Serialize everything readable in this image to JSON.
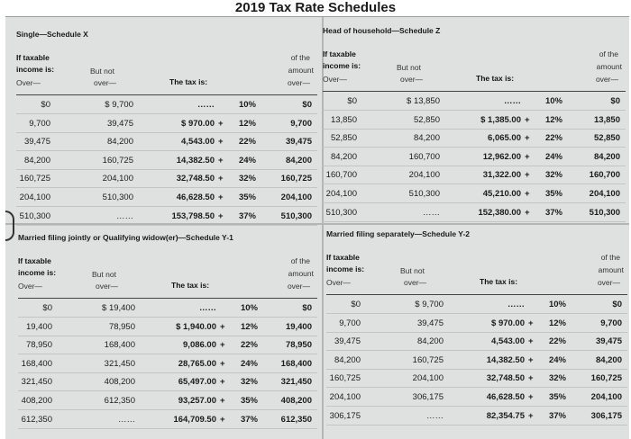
{
  "page_title": "2019 Tax Rate Schedules",
  "schedules": [
    {
      "title": "Single—Schedule X",
      "headers": {
        "if_taxable": "If taxable",
        "income_is": "income is:",
        "over_left": "Over—",
        "but_not": "But not",
        "over_mid": "over—",
        "tax_is": "The tax is:",
        "of_the": "of the",
        "amount": "amount",
        "over_right": "over—"
      },
      "rows": [
        {
          "over": "$0",
          "but_not": "$ 9,700",
          "base": "……",
          "rate": "10%",
          "amount_over": "$0"
        },
        {
          "over": "9,700",
          "but_not": "39,475",
          "base": "$ 970.00",
          "rate": "12%",
          "amount_over": "9,700"
        },
        {
          "over": "39,475",
          "but_not": "84,200",
          "base": "4,543.00",
          "rate": "22%",
          "amount_over": "39,475"
        },
        {
          "over": "84,200",
          "but_not": "160,725",
          "base": "14,382.50",
          "rate": "24%",
          "amount_over": "84,200"
        },
        {
          "over": "160,725",
          "but_not": "204,100",
          "base": "32,748.50",
          "rate": "32%",
          "amount_over": "160,725"
        },
        {
          "over": "204,100",
          "but_not": "510,300",
          "base": "46,628.50",
          "rate": "35%",
          "amount_over": "204,100"
        },
        {
          "over": "510,300",
          "but_not": "……",
          "base": "153,798.50",
          "rate": "37%",
          "amount_over": "510,300"
        }
      ]
    },
    {
      "title": "Head of household—Schedule Z",
      "headers": {
        "if_taxable": "If taxable",
        "income_is": "income is:",
        "over_left": "Over—",
        "but_not": "But not",
        "over_mid": "over—",
        "tax_is": "The tax is:",
        "of_the": "of the",
        "amount": "amount",
        "over_right": "over—"
      },
      "rows": [
        {
          "over": "$0",
          "but_not": "$ 13,850",
          "base": "……",
          "rate": "10%",
          "amount_over": "$0"
        },
        {
          "over": "13,850",
          "but_not": "52,850",
          "base": "$ 1,385.00",
          "rate": "12%",
          "amount_over": "13,850"
        },
        {
          "over": "52,850",
          "but_not": "84,200",
          "base": "6,065.00",
          "rate": "22%",
          "amount_over": "52,850"
        },
        {
          "over": "84,200",
          "but_not": "160,700",
          "base": "12,962.00",
          "rate": "24%",
          "amount_over": "84,200"
        },
        {
          "over": "160,700",
          "but_not": "204,100",
          "base": "31,322.00",
          "rate": "32%",
          "amount_over": "160,700"
        },
        {
          "over": "204,100",
          "but_not": "510,300",
          "base": "45,210.00",
          "rate": "35%",
          "amount_over": "204,100"
        },
        {
          "over": "510,300",
          "but_not": "……",
          "base": "152,380.00",
          "rate": "37%",
          "amount_over": "510,300"
        }
      ]
    },
    {
      "title": "Married filing jointly or Qualifying widow(er)—Schedule Y-1",
      "headers": {
        "if_taxable": "If taxable",
        "income_is": "income is:",
        "over_left": "Over—",
        "but_not": "But not",
        "over_mid": "over—",
        "tax_is": "The tax is:",
        "of_the": "of the",
        "amount": "amount",
        "over_right": "over—"
      },
      "rows": [
        {
          "over": "$0",
          "but_not": "$ 19,400",
          "base": "……",
          "rate": "10%",
          "amount_over": "$0"
        },
        {
          "over": "19,400",
          "but_not": "78,950",
          "base": "$ 1,940.00",
          "rate": "12%",
          "amount_over": "19,400"
        },
        {
          "over": "78,950",
          "but_not": "168,400",
          "base": "9,086.00",
          "rate": "22%",
          "amount_over": "78,950"
        },
        {
          "over": "168,400",
          "but_not": "321,450",
          "base": "28,765.00",
          "rate": "24%",
          "amount_over": "168,400"
        },
        {
          "over": "321,450",
          "but_not": "408,200",
          "base": "65,497.00",
          "rate": "32%",
          "amount_over": "321,450"
        },
        {
          "over": "408,200",
          "but_not": "612,350",
          "base": "93,257.00",
          "rate": "35%",
          "amount_over": "408,200"
        },
        {
          "over": "612,350",
          "but_not": "……",
          "base": "164,709.50",
          "rate": "37%",
          "amount_over": "612,350"
        }
      ]
    },
    {
      "title": "Married filing separately—Schedule Y-2",
      "headers": {
        "if_taxable": "If taxable",
        "income_is": "income is:",
        "over_left": "Over—",
        "but_not": "But not",
        "over_mid": "over—",
        "tax_is": "The tax is:",
        "of_the": "of the",
        "amount": "amount",
        "over_right": "over—"
      },
      "rows": [
        {
          "over": "$0",
          "but_not": "$ 9,700",
          "base": "……",
          "rate": "10%",
          "amount_over": "$0"
        },
        {
          "over": "9,700",
          "but_not": "39,475",
          "base": "$ 970.00",
          "rate": "12%",
          "amount_over": "9,700"
        },
        {
          "over": "39,475",
          "but_not": "84,200",
          "base": "4,543.00",
          "rate": "22%",
          "amount_over": "39,475"
        },
        {
          "over": "84,200",
          "but_not": "160,725",
          "base": "14,382.50",
          "rate": "24%",
          "amount_over": "84,200"
        },
        {
          "over": "160,725",
          "but_not": "204,100",
          "base": "32,748.50",
          "rate": "32%",
          "amount_over": "160,725"
        },
        {
          "over": "204,100",
          "but_not": "306,175",
          "base": "46,628.50",
          "rate": "35%",
          "amount_over": "204,100"
        },
        {
          "over": "306,175",
          "but_not": "……",
          "base": "82,354.75",
          "rate": "37%",
          "amount_over": "306,175"
        }
      ]
    }
  ]
}
